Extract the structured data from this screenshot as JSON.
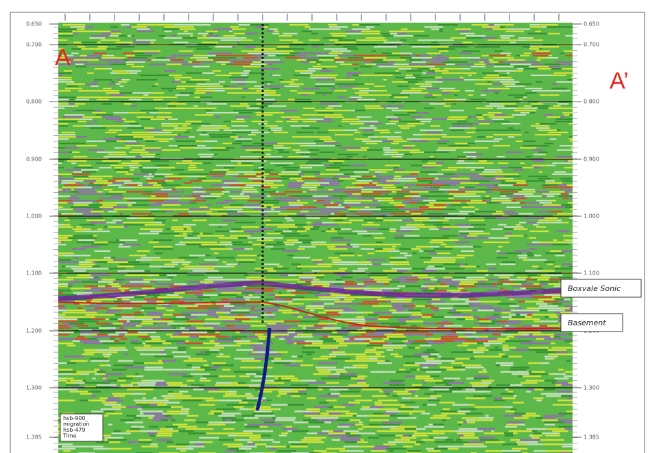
{
  "section": {
    "labels": {
      "start": "A",
      "end": "A’"
    },
    "axis": {
      "labels": [
        "0.650",
        "0.700",
        "0.800",
        "0.900",
        "1.000",
        "1.100",
        "1.200",
        "1.300",
        "1.385"
      ]
    },
    "horizons": [
      "Boxvale Sonic",
      "Basement"
    ],
    "info": [
      "hsb-900_",
      "migration",
      "hsb-479",
      "Time"
    ]
  }
}
